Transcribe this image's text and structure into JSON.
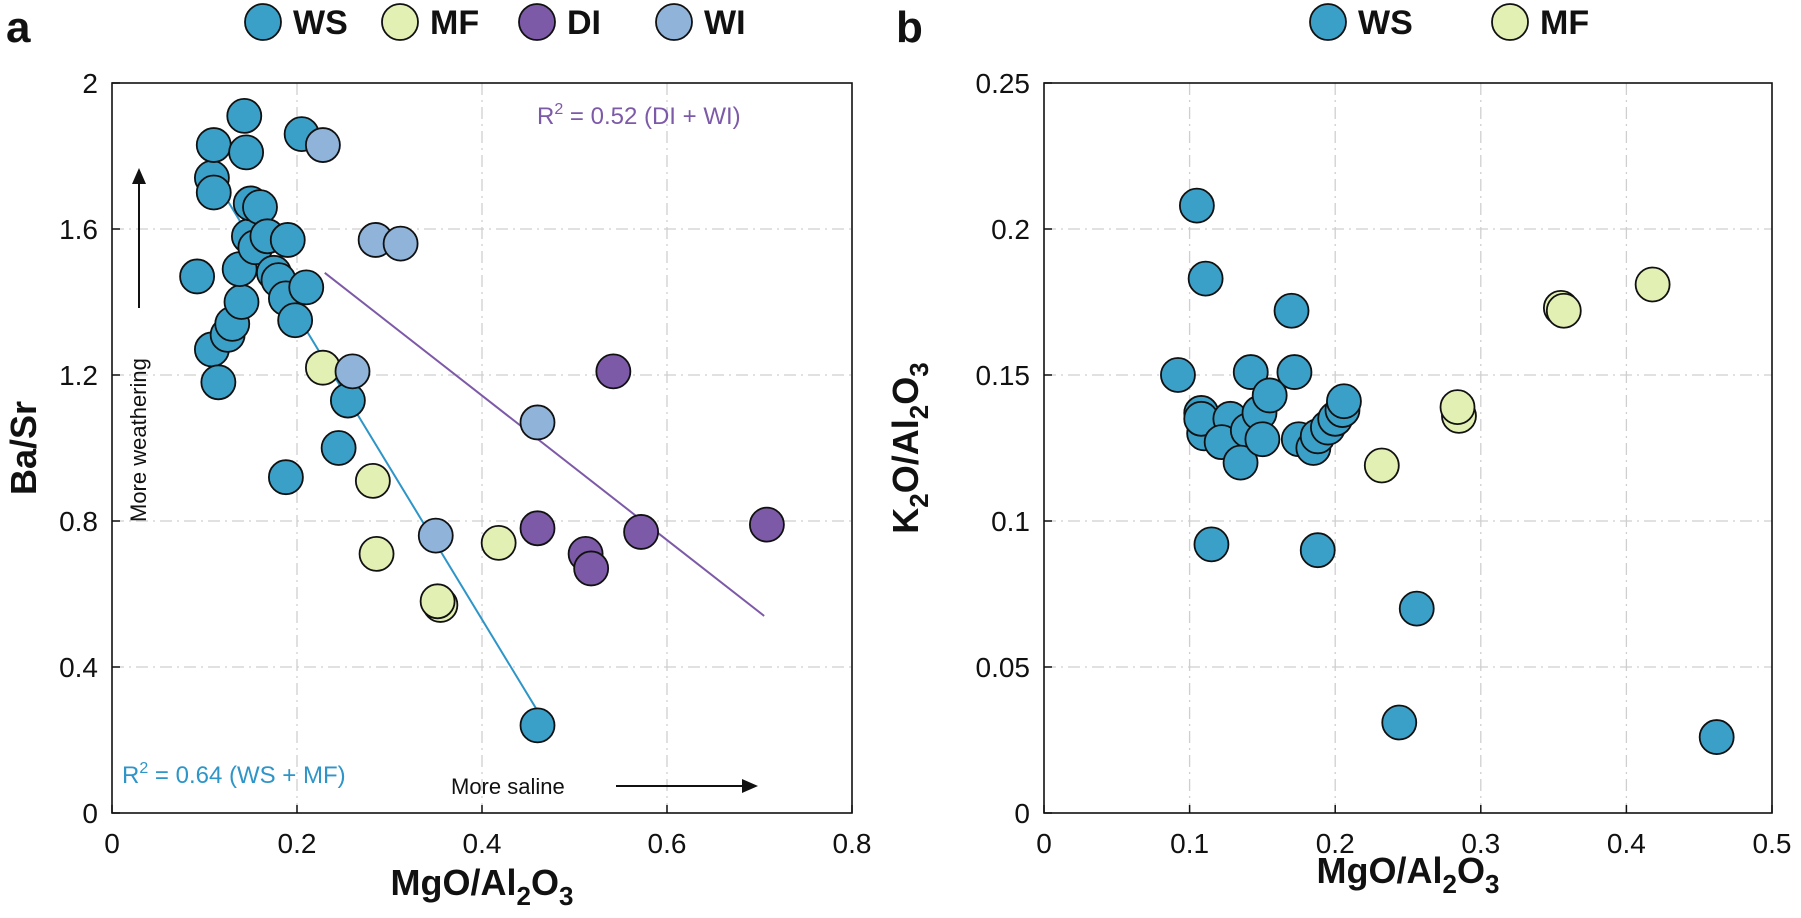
{
  "colors": {
    "WS": "#3aa0c8",
    "MF": "#e3f0b3",
    "DI": "#7d5aa8",
    "WI": "#8fb3d9",
    "fit_WS_MF": "#2e95c8",
    "fit_DI_WI": "#7d5aa8"
  },
  "chart_data": [
    {
      "panel": "a",
      "type": "scatter",
      "xlabel": "MgO/Al2O3",
      "ylabel": "Ba/Sr",
      "xlim": [
        0,
        0.8
      ],
      "ylim": [
        0,
        2
      ],
      "xticks": [
        0,
        0.2,
        0.4,
        0.6,
        0.8
      ],
      "xtick_labels": [
        "0",
        "0.2",
        "0.4",
        "0.6",
        "0.8"
      ],
      "yticks": [
        0,
        0.4,
        0.8,
        1.2,
        1.6,
        2
      ],
      "ytick_labels": [
        "0",
        "0.4",
        "0.8",
        "1.2",
        "1.6",
        "2"
      ],
      "grid": true,
      "legend": [
        "WS",
        "MF",
        "DI",
        "WI"
      ],
      "series": [
        {
          "name": "WS",
          "points": [
            [
              0.092,
              1.47
            ],
            [
              0.108,
              1.74
            ],
            [
              0.11,
              1.83
            ],
            [
              0.11,
              1.7
            ],
            [
              0.108,
              1.27
            ],
            [
              0.115,
              1.18
            ],
            [
              0.125,
              1.31
            ],
            [
              0.13,
              1.34
            ],
            [
              0.14,
              1.4
            ],
            [
              0.138,
              1.49
            ],
            [
              0.143,
              1.91
            ],
            [
              0.145,
              1.81
            ],
            [
              0.148,
              1.58
            ],
            [
              0.15,
              1.67
            ],
            [
              0.155,
              1.55
            ],
            [
              0.16,
              1.66
            ],
            [
              0.168,
              1.58
            ],
            [
              0.175,
              1.48
            ],
            [
              0.18,
              1.46
            ],
            [
              0.188,
              1.41
            ],
            [
              0.19,
              1.57
            ],
            [
              0.198,
              1.35
            ],
            [
              0.205,
              1.86
            ],
            [
              0.21,
              1.44
            ],
            [
              0.255,
              1.13
            ],
            [
              0.245,
              1.0
            ],
            [
              0.188,
              0.92
            ],
            [
              0.46,
              0.24
            ]
          ]
        },
        {
          "name": "MF",
          "points": [
            [
              0.228,
              1.22
            ],
            [
              0.282,
              0.91
            ],
            [
              0.286,
              0.71
            ],
            [
              0.355,
              0.57
            ],
            [
              0.352,
              0.58
            ],
            [
              0.418,
              0.74
            ]
          ]
        },
        {
          "name": "DI",
          "points": [
            [
              0.542,
              1.21
            ],
            [
              0.46,
              0.78
            ],
            [
              0.512,
              0.71
            ],
            [
              0.518,
              0.67
            ],
            [
              0.572,
              0.77
            ],
            [
              0.708,
              0.79
            ]
          ]
        },
        {
          "name": "WI",
          "points": [
            [
              0.228,
              1.83
            ],
            [
              0.285,
              1.57
            ],
            [
              0.312,
              1.56
            ],
            [
              0.26,
              1.21
            ],
            [
              0.46,
              1.07
            ],
            [
              0.35,
              0.76
            ]
          ]
        }
      ],
      "fits": [
        {
          "name": "WS + MF",
          "x": [
            0.11,
            0.46
          ],
          "y": [
            1.74,
            0.28
          ]
        },
        {
          "name": "DI + WI",
          "x": [
            0.23,
            0.705
          ],
          "y": [
            1.48,
            0.54
          ]
        }
      ],
      "annotations": {
        "r2_dw_prefix": "R",
        "r2_dw_sup": "2",
        "r2_dw_text": " = 0.52 (DI + WI)",
        "r2_wm_prefix": "R",
        "r2_wm_sup": "2",
        "r2_wm_text": " = 0.64 (WS + MF)",
        "more_weathering": "More weathering",
        "more_saline": "More saline"
      }
    },
    {
      "panel": "b",
      "type": "scatter",
      "xlabel": "MgO/Al2O3",
      "ylabel": "K2O/Al2O3",
      "xlim": [
        0,
        0.5
      ],
      "ylim": [
        0,
        0.25
      ],
      "xticks": [
        0,
        0.1,
        0.2,
        0.3,
        0.4,
        0.5
      ],
      "xtick_labels": [
        "0",
        "0.1",
        "0.2",
        "0.3",
        "0.4",
        "0.5"
      ],
      "yticks": [
        0,
        0.05,
        0.1,
        0.15,
        0.2,
        0.25
      ],
      "ytick_labels": [
        "0",
        "0.05",
        "0.1",
        "0.15",
        "0.2",
        "0.25"
      ],
      "grid": true,
      "legend": [
        "WS",
        "MF"
      ],
      "series": [
        {
          "name": "WS",
          "points": [
            [
              0.105,
              0.208
            ],
            [
              0.111,
              0.183
            ],
            [
              0.092,
              0.15
            ],
            [
              0.17,
              0.172
            ],
            [
              0.142,
              0.151
            ],
            [
              0.172,
              0.151
            ],
            [
              0.108,
              0.137
            ],
            [
              0.11,
              0.13
            ],
            [
              0.108,
              0.135
            ],
            [
              0.128,
              0.135
            ],
            [
              0.122,
              0.127
            ],
            [
              0.14,
              0.131
            ],
            [
              0.148,
              0.137
            ],
            [
              0.155,
              0.143
            ],
            [
              0.135,
              0.12
            ],
            [
              0.15,
              0.128
            ],
            [
              0.175,
              0.128
            ],
            [
              0.185,
              0.125
            ],
            [
              0.188,
              0.129
            ],
            [
              0.195,
              0.132
            ],
            [
              0.2,
              0.135
            ],
            [
              0.205,
              0.138
            ],
            [
              0.206,
              0.141
            ],
            [
              0.115,
              0.092
            ],
            [
              0.188,
              0.09
            ],
            [
              0.256,
              0.07
            ],
            [
              0.244,
              0.031
            ],
            [
              0.462,
              0.026
            ]
          ]
        },
        {
          "name": "MF",
          "points": [
            [
              0.232,
              0.119
            ],
            [
              0.285,
              0.136
            ],
            [
              0.284,
              0.139
            ],
            [
              0.355,
              0.173
            ],
            [
              0.357,
              0.172
            ],
            [
              0.418,
              0.181
            ]
          ]
        }
      ]
    }
  ],
  "labels": {
    "panel_a": "a",
    "panel_b": "b",
    "legend_a": [
      "WS",
      "MF",
      "DI",
      "WI"
    ],
    "legend_b": [
      "WS",
      "MF"
    ],
    "a_ylabel": "Ba/Sr",
    "a_xlabel_main": "MgO/Al",
    "a_xlabel_sub1": "2",
    "a_xlabel_mid": "O",
    "a_xlabel_sub2": "3",
    "b_xlabel_main": "MgO/Al",
    "b_xlabel_sub1": "2",
    "b_xlabel_mid": "O",
    "b_xlabel_sub2": "3",
    "b_ylabel_k": "K",
    "b_ylabel_sub1": "2",
    "b_ylabel_mid": "O/Al",
    "b_ylabel_sub2": "2",
    "b_ylabel_o": "O",
    "b_ylabel_sub3": "3"
  }
}
